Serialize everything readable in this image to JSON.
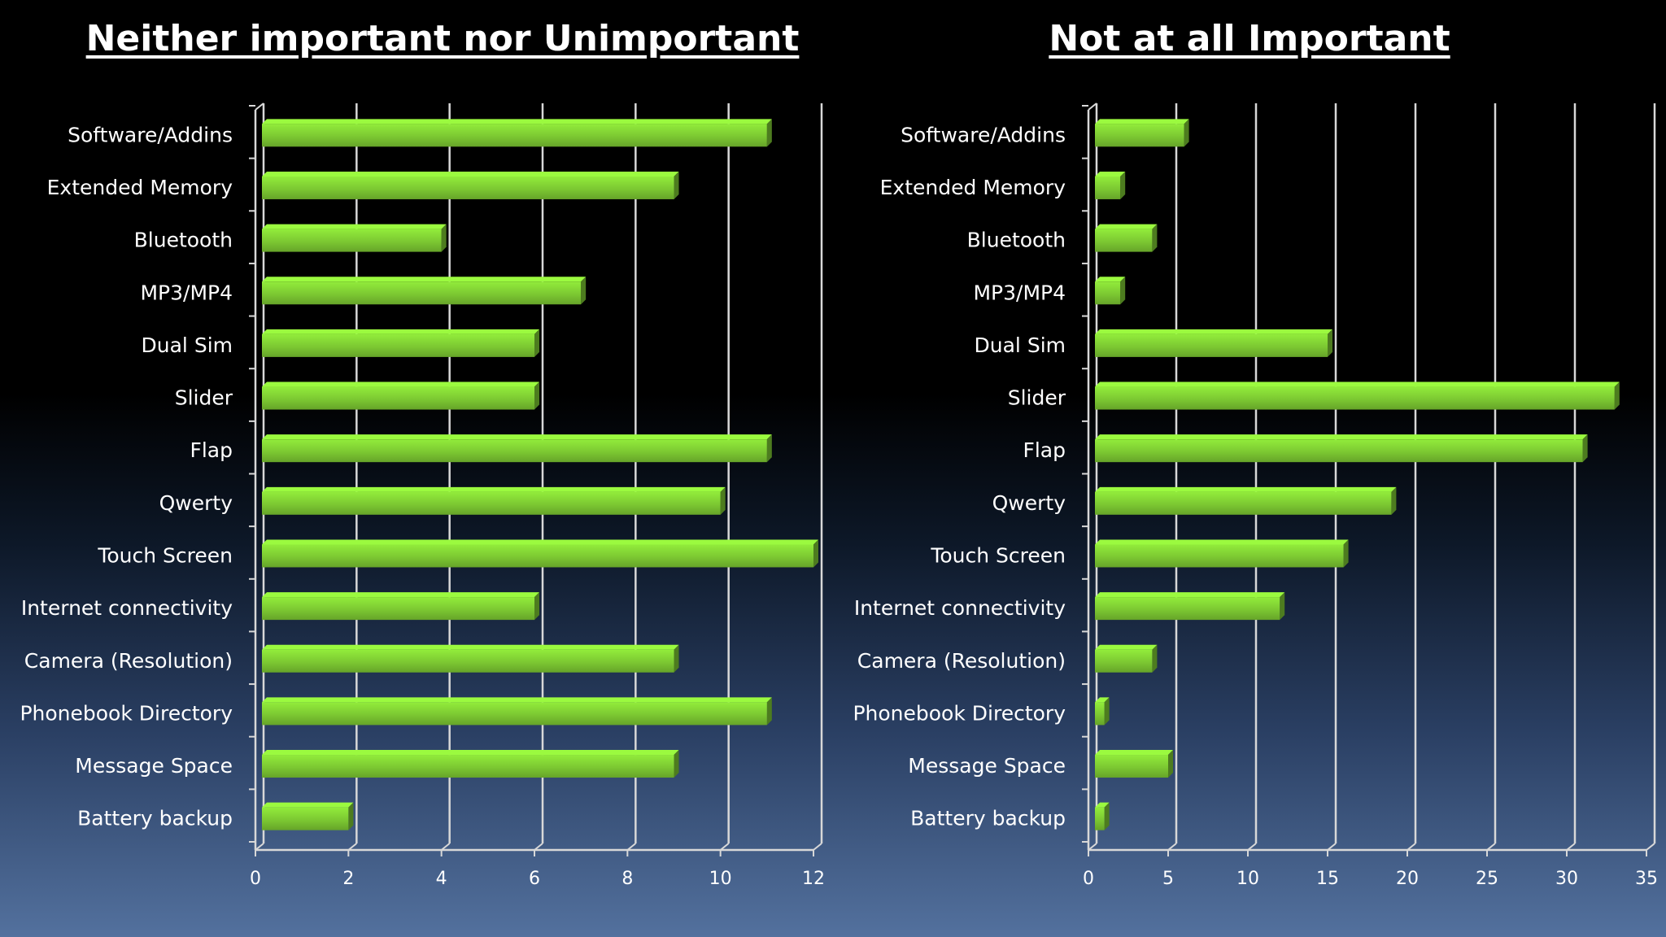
{
  "chart_data": [
    {
      "type": "bar",
      "orientation": "horizontal",
      "title": "Neither important nor Unimportant",
      "categories": [
        "Software/Addins",
        "Extended Memory",
        "Bluetooth",
        "MP3/MP4",
        "Dual Sim",
        "Slider",
        "Flap",
        "Qwerty",
        "Touch Screen",
        "Internet connectivity",
        "Camera  (Resolution)",
        "Phonebook Directory",
        "Message Space",
        "Battery backup"
      ],
      "values": [
        11,
        9,
        4,
        7,
        6,
        6,
        11,
        10,
        12,
        6,
        9,
        11,
        9,
        2
      ],
      "xlim": [
        0,
        12
      ],
      "ticks": [
        "0",
        "2",
        "4",
        "6",
        "8",
        "10",
        "12"
      ],
      "grid": true,
      "color": "#7cc832"
    },
    {
      "type": "bar",
      "orientation": "horizontal",
      "title": "Not at all Important",
      "categories": [
        "Software/Addins",
        "Extended Memory",
        "Bluetooth",
        "MP3/MP4",
        "Dual Sim",
        "Slider",
        "Flap",
        "Qwerty",
        "Touch Screen",
        "Internet connectivity",
        "Camera  (Resolution)",
        "Phonebook Directory",
        "Message Space",
        "Battery backup"
      ],
      "values": [
        6,
        2,
        4,
        2,
        15,
        33,
        31,
        19,
        16,
        12,
        4,
        1,
        5,
        1
      ],
      "xlim": [
        0,
        35
      ],
      "ticks": [
        "0",
        "5",
        "10",
        "15",
        "20",
        "25",
        "30",
        "35"
      ],
      "grid": true,
      "color": "#7cc832"
    }
  ]
}
